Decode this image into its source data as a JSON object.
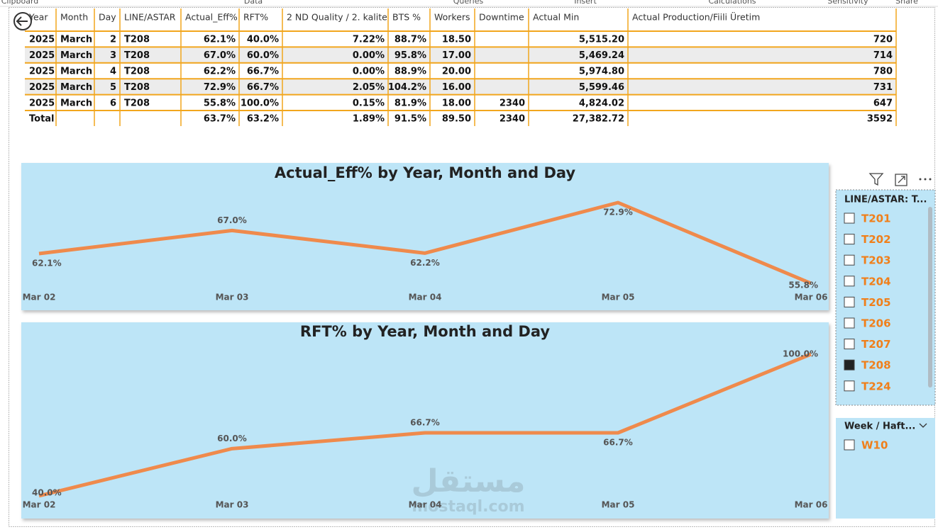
{
  "ribbon": [
    "Clipboard",
    "Data",
    "Queries",
    "Insert",
    "Calculations",
    "Sensitivity",
    "Share"
  ],
  "table": {
    "columns": [
      "Year",
      "Month",
      "Day",
      "LINE/ASTAR",
      "Actual_Eff%",
      "RFT%",
      "2 ND Quality / 2. kalite",
      "BTS %",
      "Workers",
      "Downtime",
      "Actual Min",
      "Actual Production/Fiili Üretim"
    ],
    "rows": [
      [
        "2025",
        "March",
        "2",
        "T208",
        "62.1%",
        "40.0%",
        "7.22%",
        "88.7%",
        "18.50",
        null,
        "5,515.20",
        "720"
      ],
      [
        "2025",
        "March",
        "3",
        "T208",
        "67.0%",
        "60.0%",
        "0.00%",
        "95.8%",
        "17.00",
        null,
        "5,469.24",
        "714"
      ],
      [
        "2025",
        "March",
        "4",
        "T208",
        "62.2%",
        "66.7%",
        "0.00%",
        "88.9%",
        "20.00",
        null,
        "5,974.80",
        "780"
      ],
      [
        "2025",
        "March",
        "5",
        "T208",
        "72.9%",
        "66.7%",
        "2.05%",
        "104.2%",
        "16.00",
        null,
        "5,599.46",
        "731"
      ],
      [
        "2025",
        "March",
        "6",
        "T208",
        "55.8%",
        "100.0%",
        "0.15%",
        "81.9%",
        "18.00",
        "2340",
        "4,824.02",
        "647"
      ],
      [
        "Total",
        null,
        null,
        null,
        "63.7%",
        "63.2%",
        "1.89%",
        "91.5%",
        "89.50",
        "2340",
        "27,382.72",
        "3592"
      ]
    ]
  },
  "chart_data": [
    {
      "type": "line",
      "title": "Actual_Eff% by Year, Month and Day",
      "categories": [
        "Mar 02",
        "Mar 03",
        "Mar 04",
        "Mar 05",
        "Mar 06"
      ],
      "values": [
        62.1,
        67.0,
        62.2,
        72.9,
        55.8
      ],
      "value_labels": [
        "62.1%",
        "67.0%",
        "62.2%",
        "72.9%",
        "55.8%"
      ],
      "color": "#ef8a4c"
    },
    {
      "type": "line",
      "title": "RFT% by Year, Month and Day",
      "categories": [
        "Mar 02",
        "Mar 03",
        "Mar 04",
        "Mar 05",
        "Mar 06"
      ],
      "values": [
        40.0,
        60.0,
        66.7,
        66.7,
        100.0
      ],
      "value_labels": [
        "40.0%",
        "60.0%",
        "66.7%",
        "66.7%",
        "100.0%"
      ],
      "color": "#ef8a4c"
    }
  ],
  "slicers": [
    {
      "title": "LINE/ASTAR: T...",
      "items": [
        "T201",
        "T202",
        "T203",
        "T204",
        "T205",
        "T206",
        "T207",
        "T208",
        "T224"
      ],
      "checked": [
        false,
        false,
        false,
        false,
        false,
        false,
        false,
        true,
        false
      ]
    },
    {
      "title": "Week / Haft...",
      "items": [
        "W10"
      ],
      "checked": [
        false
      ]
    }
  ],
  "watermark": [
    "مستقل",
    "mostaql.com"
  ]
}
